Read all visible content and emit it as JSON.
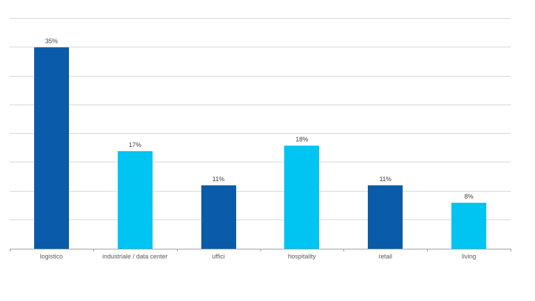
{
  "chart_data": {
    "type": "bar",
    "title": "",
    "xlabel": "",
    "ylabel": "",
    "categories": [
      "logistico",
      "industriale / data center",
      "uffici",
      "hospitality",
      "retail",
      "living"
    ],
    "values": [
      35,
      17,
      11,
      18,
      11,
      8
    ],
    "value_labels": [
      "35%",
      "17%",
      "11%",
      "18%",
      "11%",
      "8%"
    ],
    "bar_colors": [
      "#0A5CAA",
      "#00C4F2",
      "#0A5CAA",
      "#00C4F2",
      "#0A5CAA",
      "#00C4F2"
    ],
    "ylim": [
      0,
      40
    ],
    "gridline_step": 5,
    "grid": true,
    "y_tick_labels_visible": false,
    "legend_position": "none"
  },
  "colors": {
    "bar_dark_blue": "#0A5CAA",
    "bar_cyan": "#00C4F2",
    "gridline": "#D6D6D6",
    "axis_line": "#9E9E9E",
    "category_text": "#595959",
    "value_text": "#404040",
    "background": "#FFFFFF"
  }
}
